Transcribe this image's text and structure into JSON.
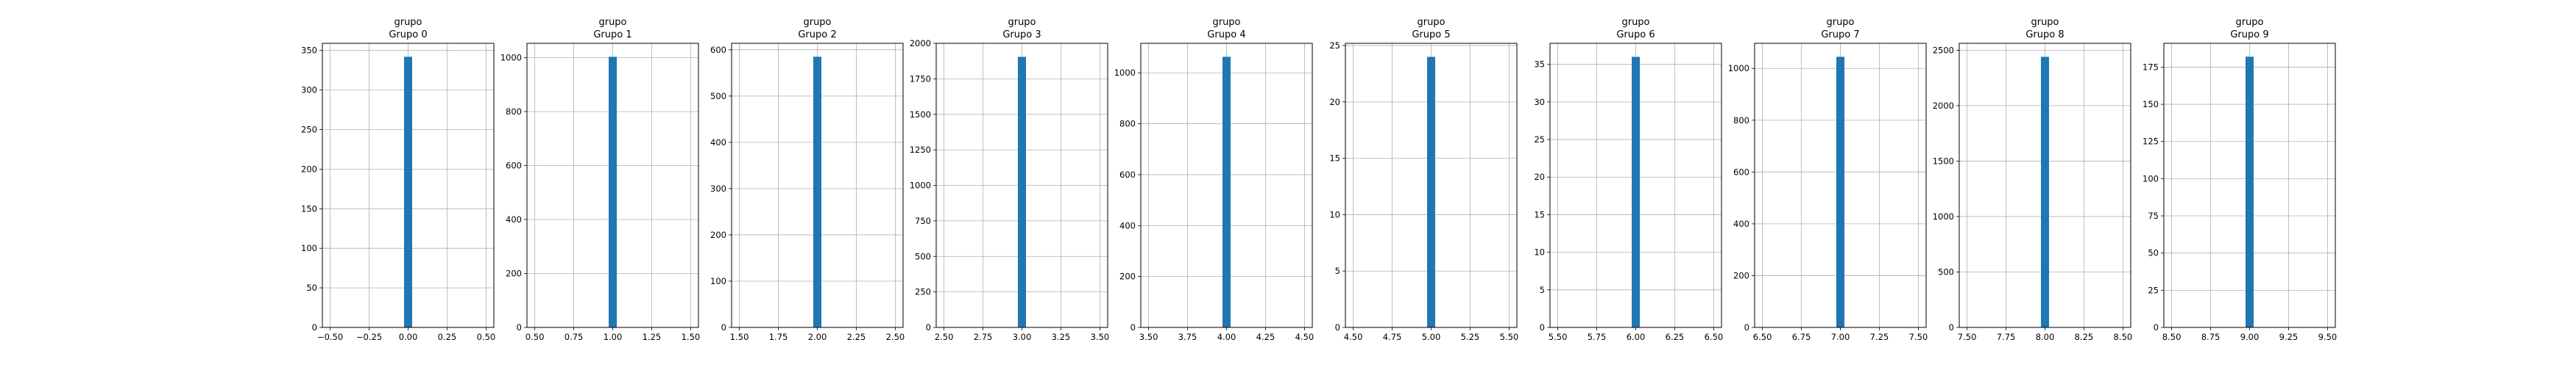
{
  "figure": {
    "background": "#ffffff",
    "bar_color": "#1f77b4",
    "grid_color": "#b0b0b0"
  },
  "chart_data": [
    {
      "type": "bar",
      "title": "grupo",
      "subtitle": "Grupo 0",
      "xlabel": "",
      "ylabel": "",
      "bar_x": 0.0,
      "value": 342,
      "xlim": [
        -0.55,
        0.55
      ],
      "ylim": [
        0,
        359
      ],
      "xticks": [
        -0.5,
        -0.25,
        0.0,
        0.25,
        0.5
      ],
      "xtick_labels": [
        "−0.50",
        "−0.25",
        "0.00",
        "0.25",
        "0.50"
      ],
      "yticks": [
        0,
        50,
        100,
        150,
        200,
        250,
        300,
        350
      ],
      "ytick_labels": [
        "0",
        "50",
        "100",
        "150",
        "200",
        "250",
        "300",
        "350"
      ],
      "grid": true
    },
    {
      "type": "bar",
      "title": "grupo",
      "subtitle": "Grupo 1",
      "xlabel": "",
      "ylabel": "",
      "bar_x": 1.0,
      "value": 1003,
      "xlim": [
        0.45,
        1.55
      ],
      "ylim": [
        0,
        1053
      ],
      "xticks": [
        0.5,
        0.75,
        1.0,
        1.25,
        1.5
      ],
      "xtick_labels": [
        "0.50",
        "0.75",
        "1.00",
        "1.25",
        "1.50"
      ],
      "yticks": [
        0,
        200,
        400,
        600,
        800,
        1000
      ],
      "ytick_labels": [
        "0",
        "200",
        "400",
        "600",
        "800",
        "1000"
      ],
      "grid": true
    },
    {
      "type": "bar",
      "title": "grupo",
      "subtitle": "Grupo 2",
      "xlabel": "",
      "ylabel": "",
      "bar_x": 2.0,
      "value": 585,
      "xlim": [
        1.45,
        2.55
      ],
      "ylim": [
        0,
        614
      ],
      "xticks": [
        1.5,
        1.75,
        2.0,
        2.25,
        2.5
      ],
      "xtick_labels": [
        "1.50",
        "1.75",
        "2.00",
        "2.25",
        "2.50"
      ],
      "yticks": [
        0,
        100,
        200,
        300,
        400,
        500,
        600
      ],
      "ytick_labels": [
        "0",
        "100",
        "200",
        "300",
        "400",
        "500",
        "600"
      ],
      "grid": true
    },
    {
      "type": "bar",
      "title": "grupo",
      "subtitle": "Grupo 3",
      "xlabel": "",
      "ylabel": "",
      "bar_x": 3.0,
      "value": 1905,
      "xlim": [
        2.45,
        3.55
      ],
      "ylim": [
        0,
        2000
      ],
      "xticks": [
        2.5,
        2.75,
        3.0,
        3.25,
        3.5
      ],
      "xtick_labels": [
        "2.50",
        "2.75",
        "3.00",
        "3.25",
        "3.50"
      ],
      "yticks": [
        0,
        250,
        500,
        750,
        1000,
        1250,
        1500,
        1750,
        2000
      ],
      "ytick_labels": [
        "0",
        "250",
        "500",
        "750",
        "1000",
        "1250",
        "1500",
        "1750",
        "2000"
      ],
      "grid": true
    },
    {
      "type": "bar",
      "title": "grupo",
      "subtitle": "Grupo 4",
      "xlabel": "",
      "ylabel": "",
      "bar_x": 4.0,
      "value": 1063,
      "xlim": [
        3.45,
        4.55
      ],
      "ylim": [
        0,
        1116
      ],
      "xticks": [
        3.5,
        3.75,
        4.0,
        4.25,
        4.5
      ],
      "xtick_labels": [
        "3.50",
        "3.75",
        "4.00",
        "4.25",
        "4.50"
      ],
      "yticks": [
        0,
        200,
        400,
        600,
        800,
        1000
      ],
      "ytick_labels": [
        "0",
        "200",
        "400",
        "600",
        "800",
        "1000"
      ],
      "grid": true
    },
    {
      "type": "bar",
      "title": "grupo",
      "subtitle": "Grupo 5",
      "xlabel": "",
      "ylabel": "",
      "bar_x": 5.0,
      "value": 24,
      "xlim": [
        4.45,
        5.55
      ],
      "ylim": [
        0,
        25.2
      ],
      "xticks": [
        4.5,
        4.75,
        5.0,
        5.25,
        5.5
      ],
      "xtick_labels": [
        "4.50",
        "4.75",
        "5.00",
        "5.25",
        "5.50"
      ],
      "yticks": [
        0,
        5,
        10,
        15,
        20,
        25
      ],
      "ytick_labels": [
        "0",
        "5",
        "10",
        "15",
        "20",
        "25"
      ],
      "grid": true
    },
    {
      "type": "bar",
      "title": "grupo",
      "subtitle": "Grupo 6",
      "xlabel": "",
      "ylabel": "",
      "bar_x": 6.0,
      "value": 36,
      "xlim": [
        5.45,
        6.55
      ],
      "ylim": [
        0,
        37.8
      ],
      "xticks": [
        5.5,
        5.75,
        6.0,
        6.25,
        6.5
      ],
      "xtick_labels": [
        "5.50",
        "5.75",
        "6.00",
        "6.25",
        "6.50"
      ],
      "yticks": [
        0,
        5,
        10,
        15,
        20,
        25,
        30,
        35
      ],
      "ytick_labels": [
        "0",
        "5",
        "10",
        "15",
        "20",
        "25",
        "30",
        "35"
      ],
      "grid": true
    },
    {
      "type": "bar",
      "title": "grupo",
      "subtitle": "Grupo 7",
      "xlabel": "",
      "ylabel": "",
      "bar_x": 7.0,
      "value": 1045,
      "xlim": [
        6.45,
        7.55
      ],
      "ylim": [
        0,
        1097
      ],
      "xticks": [
        6.5,
        6.75,
        7.0,
        7.25,
        7.5
      ],
      "xtick_labels": [
        "6.50",
        "6.75",
        "7.00",
        "7.25",
        "7.50"
      ],
      "yticks": [
        0,
        200,
        400,
        600,
        800,
        1000
      ],
      "ytick_labels": [
        "0",
        "200",
        "400",
        "600",
        "800",
        "1000"
      ],
      "grid": true
    },
    {
      "type": "bar",
      "title": "grupo",
      "subtitle": "Grupo 8",
      "xlabel": "",
      "ylabel": "",
      "bar_x": 8.0,
      "value": 2440,
      "xlim": [
        7.45,
        8.55
      ],
      "ylim": [
        0,
        2562
      ],
      "xticks": [
        7.5,
        7.75,
        8.0,
        8.25,
        8.5
      ],
      "xtick_labels": [
        "7.50",
        "7.75",
        "8.00",
        "8.25",
        "8.50"
      ],
      "yticks": [
        0,
        500,
        1000,
        1500,
        2000,
        2500
      ],
      "ytick_labels": [
        "0",
        "500",
        "1000",
        "1500",
        "2000",
        "2500"
      ],
      "grid": true
    },
    {
      "type": "bar",
      "title": "grupo",
      "subtitle": "Grupo 9",
      "xlabel": "",
      "ylabel": "",
      "bar_x": 9.0,
      "value": 182,
      "xlim": [
        8.45,
        9.55
      ],
      "ylim": [
        0,
        191
      ],
      "xticks": [
        8.5,
        8.75,
        9.0,
        9.25,
        9.5
      ],
      "xtick_labels": [
        "8.50",
        "8.75",
        "9.00",
        "9.25",
        "9.50"
      ],
      "yticks": [
        0,
        25,
        50,
        75,
        100,
        125,
        150,
        175
      ],
      "ytick_labels": [
        "0",
        "25",
        "50",
        "75",
        "100",
        "125",
        "150",
        "175"
      ],
      "grid": true
    }
  ]
}
